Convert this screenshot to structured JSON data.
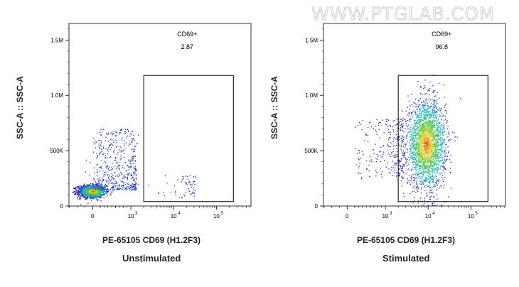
{
  "watermark": "WWW.PTGLAB.COM",
  "colors": {
    "axis": "#000000",
    "gate": "#000000",
    "density_low": "#1a1aa8",
    "density_mid": "#19b8c8",
    "density_high": "#e03a10"
  },
  "chart_data": [
    {
      "type": "scatter",
      "subtype": "flow-cytometry-density-plot",
      "caption": "Unstimulated",
      "xlabel": "PE-65105 CD69 (H1.2F3)",
      "ylabel": "SSC-A :: SSC-A",
      "x_scale": "biexponential",
      "x_ticks": [
        "0",
        "10",
        "10",
        "10"
      ],
      "x_tick_exponents": [
        "",
        "3",
        "4",
        "5"
      ],
      "y_ticks": [
        "0",
        "500K",
        "1.0M",
        "1.5M"
      ],
      "ylim": [
        0,
        1650000
      ],
      "gate": {
        "name": "CD69+",
        "value": "2.87",
        "x_range": [
          2000,
          250000
        ],
        "y_range": [
          40000,
          1180000
        ]
      },
      "populations": [
        {
          "name": "main",
          "x_center": 0,
          "y_center": 140000,
          "spread": "tight"
        },
        {
          "name": "tail",
          "x_range": [
            0,
            1500
          ],
          "y_range": [
            150000,
            700000
          ],
          "spread": "sparse"
        }
      ]
    },
    {
      "type": "scatter",
      "subtype": "flow-cytometry-density-plot",
      "caption": "Stimulated",
      "xlabel": "PE-65105 CD69 (H1.2F3)",
      "ylabel": "SSC-A :: SSC-A",
      "x_scale": "biexponential",
      "x_ticks": [
        "0",
        "10",
        "10",
        "10"
      ],
      "x_tick_exponents": [
        "",
        "3",
        "4",
        "5"
      ],
      "y_ticks": [
        "0",
        "500K",
        "1.0M",
        "1.5M"
      ],
      "ylim": [
        0,
        1650000
      ],
      "gate": {
        "name": "CD69+",
        "value": "96.8",
        "x_range": [
          2000,
          250000
        ],
        "y_range": [
          40000,
          1180000
        ]
      },
      "populations": [
        {
          "name": "main",
          "x_center": 9000,
          "y_center": 560000,
          "spread": "broad"
        }
      ]
    }
  ]
}
